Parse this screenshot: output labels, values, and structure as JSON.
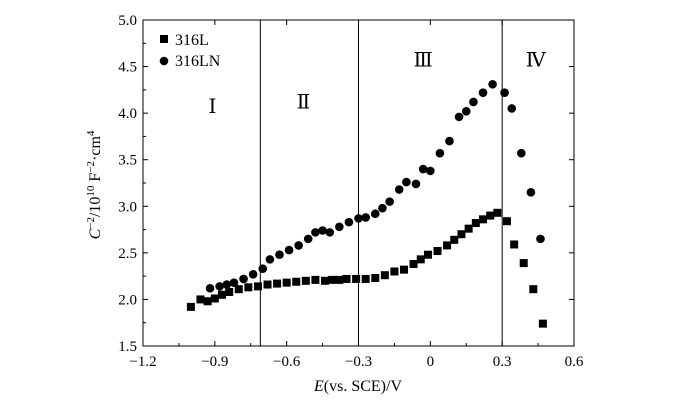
{
  "chart_data": {
    "type": "scatter",
    "xlabel": {
      "italic": "E",
      "rest": "(vs. SCE)/V"
    },
    "ylabel": {
      "c": "C",
      "sup1": "−2",
      "mid": "/10",
      "sup2": "10",
      "mid2": " F",
      "sup3": "−2",
      "tail": "·cm",
      "sup4": "4"
    },
    "xlim": [
      -1.2,
      0.6
    ],
    "ylim": [
      1.5,
      5.0
    ],
    "xticks": [
      -1.2,
      -0.9,
      -0.6,
      -0.3,
      0,
      0.3,
      0.6
    ],
    "xtick_labels": [
      "−1.2",
      "−0.9",
      "−0.6",
      "−0.3",
      "0",
      "0.3",
      "0.6"
    ],
    "yticks": [
      1.5,
      2.0,
      2.5,
      3.0,
      3.5,
      4.0,
      4.5,
      5.0
    ],
    "ytick_labels": [
      "1.5",
      "2.0",
      "2.5",
      "3.0",
      "3.5",
      "4.0",
      "4.5",
      "5.0"
    ],
    "vlines": [
      -0.71,
      -0.3,
      0.3
    ],
    "regions": [
      {
        "label": "Ⅰ",
        "x": -0.91,
        "y": 4.0
      },
      {
        "label": "Ⅱ",
        "x": -0.53,
        "y": 4.05
      },
      {
        "label": "Ⅲ",
        "x": -0.03,
        "y": 4.5
      },
      {
        "label": "Ⅳ",
        "x": 0.44,
        "y": 4.5
      }
    ],
    "legend_position": "top-left",
    "series": [
      {
        "name": "316L",
        "marker": "square",
        "points": [
          [
            -1.0,
            1.92
          ],
          [
            -0.96,
            2.0
          ],
          [
            -0.93,
            1.98
          ],
          [
            -0.9,
            2.01
          ],
          [
            -0.87,
            2.05
          ],
          [
            -0.84,
            2.08
          ],
          [
            -0.8,
            2.11
          ],
          [
            -0.76,
            2.13
          ],
          [
            -0.72,
            2.14
          ],
          [
            -0.68,
            2.16
          ],
          [
            -0.64,
            2.17
          ],
          [
            -0.6,
            2.18
          ],
          [
            -0.56,
            2.19
          ],
          [
            -0.52,
            2.2
          ],
          [
            -0.48,
            2.21
          ],
          [
            -0.44,
            2.2
          ],
          [
            -0.41,
            2.21
          ],
          [
            -0.38,
            2.21
          ],
          [
            -0.35,
            2.22
          ],
          [
            -0.31,
            2.22
          ],
          [
            -0.27,
            2.22
          ],
          [
            -0.23,
            2.23
          ],
          [
            -0.19,
            2.26
          ],
          [
            -0.15,
            2.3
          ],
          [
            -0.11,
            2.32
          ],
          [
            -0.07,
            2.38
          ],
          [
            -0.04,
            2.43
          ],
          [
            -0.01,
            2.48
          ],
          [
            0.03,
            2.52
          ],
          [
            0.07,
            2.58
          ],
          [
            0.1,
            2.64
          ],
          [
            0.13,
            2.7
          ],
          [
            0.16,
            2.76
          ],
          [
            0.19,
            2.82
          ],
          [
            0.22,
            2.86
          ],
          [
            0.25,
            2.9
          ],
          [
            0.28,
            2.93
          ],
          [
            0.32,
            2.84
          ],
          [
            0.35,
            2.59
          ],
          [
            0.39,
            2.39
          ],
          [
            0.43,
            2.11
          ],
          [
            0.47,
            1.74
          ]
        ]
      },
      {
        "name": "316LN",
        "marker": "circle",
        "points": [
          [
            -0.92,
            2.12
          ],
          [
            -0.88,
            2.14
          ],
          [
            -0.85,
            2.16
          ],
          [
            -0.82,
            2.18
          ],
          [
            -0.78,
            2.22
          ],
          [
            -0.74,
            2.27
          ],
          [
            -0.7,
            2.33
          ],
          [
            -0.67,
            2.43
          ],
          [
            -0.63,
            2.48
          ],
          [
            -0.59,
            2.53
          ],
          [
            -0.55,
            2.58
          ],
          [
            -0.51,
            2.65
          ],
          [
            -0.48,
            2.72
          ],
          [
            -0.45,
            2.74
          ],
          [
            -0.42,
            2.72
          ],
          [
            -0.38,
            2.78
          ],
          [
            -0.34,
            2.83
          ],
          [
            -0.3,
            2.87
          ],
          [
            -0.27,
            2.88
          ],
          [
            -0.23,
            2.92
          ],
          [
            -0.2,
            2.98
          ],
          [
            -0.17,
            3.05
          ],
          [
            -0.13,
            3.18
          ],
          [
            -0.1,
            3.26
          ],
          [
            -0.06,
            3.24
          ],
          [
            -0.03,
            3.4
          ],
          [
            0.0,
            3.38
          ],
          [
            0.04,
            3.57
          ],
          [
            0.08,
            3.7
          ],
          [
            0.12,
            3.96
          ],
          [
            0.15,
            4.02
          ],
          [
            0.18,
            4.12
          ],
          [
            0.22,
            4.22
          ],
          [
            0.26,
            4.31
          ],
          [
            0.31,
            4.22
          ],
          [
            0.34,
            4.05
          ],
          [
            0.38,
            3.57
          ],
          [
            0.42,
            3.15
          ],
          [
            0.46,
            2.65
          ]
        ]
      }
    ]
  }
}
